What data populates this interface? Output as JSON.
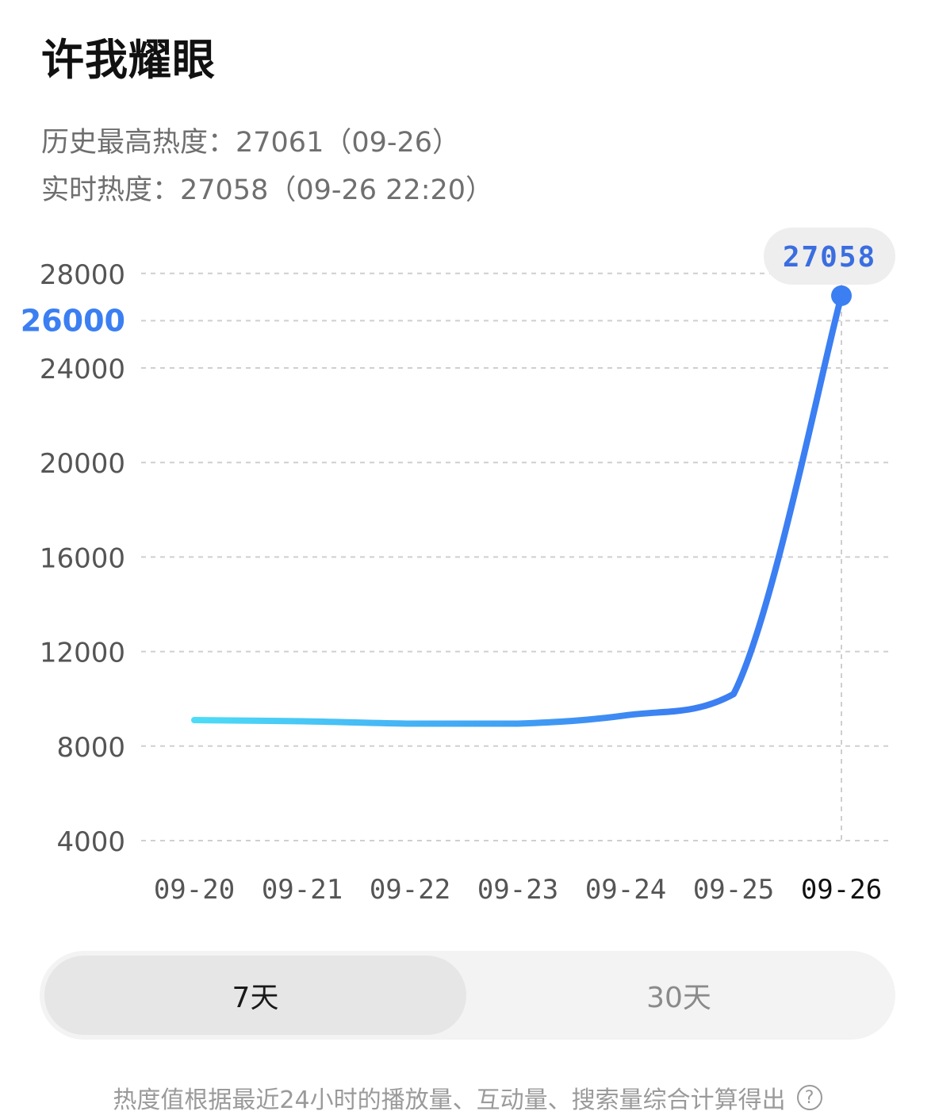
{
  "header": {
    "title": "许我耀眼",
    "history_peak": "历史最高热度：27061（09-26）",
    "realtime": "实时热度：27058（09-26 22:20）"
  },
  "chart_data": {
    "type": "line",
    "x": [
      "09-20",
      "09-21",
      "09-22",
      "09-23",
      "09-24",
      "09-25",
      "09-26"
    ],
    "highlight_x": "09-26",
    "y_ticks": [
      4000,
      8000,
      12000,
      16000,
      20000,
      24000,
      26000,
      28000
    ],
    "highlight_y_tick": 26000,
    "ylim": [
      4000,
      28000
    ],
    "series": [
      {
        "values": [
          9100,
          9050,
          8950,
          8950,
          9300,
          10200,
          27058
        ],
        "color_start": "#4ddcf7",
        "color_end": "#3b7ff2"
      }
    ],
    "tooltip": {
      "label": "27058",
      "x": "09-26",
      "value": 27058
    },
    "grid": true
  },
  "range_toggle": {
    "options": [
      "7天",
      "30天"
    ],
    "selected": "7天"
  },
  "footnote": {
    "text": "热度值根据最近24小时的播放量、互动量、搜索量综合计算得出",
    "icon": "help-icon",
    "icon_glyph": "?"
  },
  "colors": {
    "accent": "#3b7ff2",
    "accent_text": "#3a6ee0",
    "grid": "#cfcfcf",
    "tick": "#555555"
  }
}
